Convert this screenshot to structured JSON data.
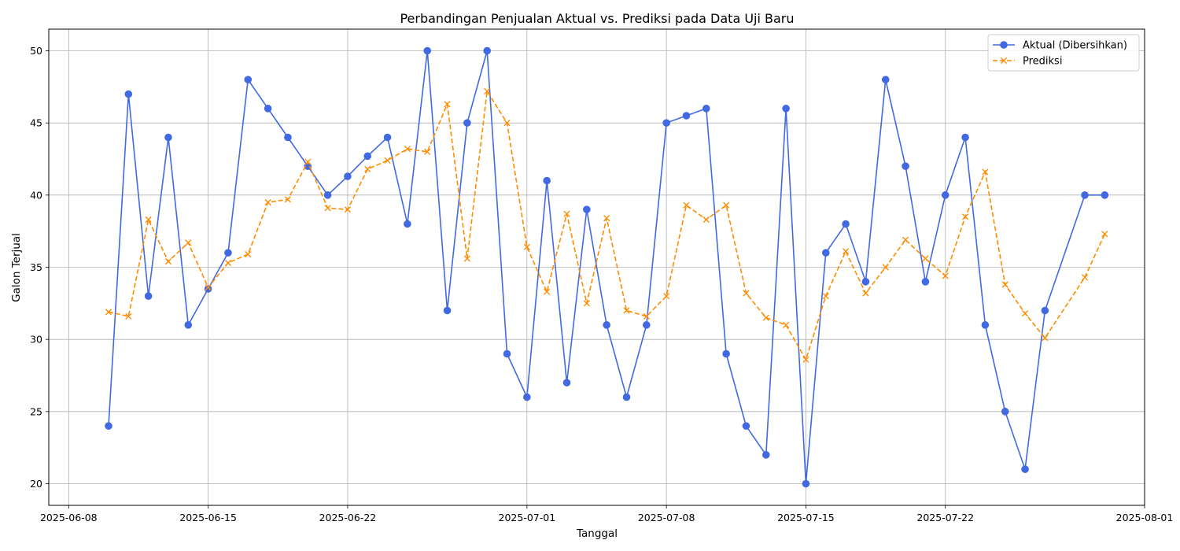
{
  "chart_data": {
    "type": "line",
    "title": "Perbandingan Penjualan Aktual vs. Prediksi pada Data Uji Baru",
    "xlabel": "Tanggal",
    "ylabel": "Galon Terjual",
    "x_ticks": [
      "2025-06-08",
      "2025-06-15",
      "2025-06-22",
      "2025-07-01",
      "2025-07-08",
      "2025-07-15",
      "2025-07-22",
      "2025-08-01"
    ],
    "y_ticks": [
      20,
      25,
      30,
      35,
      40,
      45,
      50
    ],
    "xlim": [
      "2025-06-07",
      "2025-08-01"
    ],
    "ylim": [
      18.5,
      51.5
    ],
    "grid": true,
    "legend": "top-right",
    "series": [
      {
        "name": "Aktual (Dibersihkan)",
        "color": "#4169e1",
        "style": "solid",
        "marker": "circle",
        "points": [
          [
            "2025-06-10",
            24
          ],
          [
            "2025-06-11",
            47
          ],
          [
            "2025-06-12",
            33
          ],
          [
            "2025-06-13",
            44
          ],
          [
            "2025-06-14",
            31
          ],
          [
            "2025-06-15",
            33.5
          ],
          [
            "2025-06-16",
            36
          ],
          [
            "2025-06-17",
            48
          ],
          [
            "2025-06-18",
            46
          ],
          [
            "2025-06-19",
            44
          ],
          [
            "2025-06-20",
            42
          ],
          [
            "2025-06-21",
            40
          ],
          [
            "2025-06-22",
            41.3
          ],
          [
            "2025-06-23",
            42.7
          ],
          [
            "2025-06-24",
            44
          ],
          [
            "2025-06-25",
            38
          ],
          [
            "2025-06-26",
            50
          ],
          [
            "2025-06-27",
            32
          ],
          [
            "2025-06-28",
            45
          ],
          [
            "2025-06-29",
            50
          ],
          [
            "2025-06-30",
            29
          ],
          [
            "2025-07-01",
            26
          ],
          [
            "2025-07-02",
            41
          ],
          [
            "2025-07-03",
            27
          ],
          [
            "2025-07-04",
            39
          ],
          [
            "2025-07-05",
            31
          ],
          [
            "2025-07-06",
            26
          ],
          [
            "2025-07-07",
            31
          ],
          [
            "2025-07-08",
            45
          ],
          [
            "2025-07-09",
            45.5
          ],
          [
            "2025-07-10",
            46
          ],
          [
            "2025-07-11",
            29
          ],
          [
            "2025-07-12",
            24
          ],
          [
            "2025-07-13",
            22
          ],
          [
            "2025-07-14",
            46
          ],
          [
            "2025-07-15",
            20
          ],
          [
            "2025-07-16",
            36
          ],
          [
            "2025-07-17",
            38
          ],
          [
            "2025-07-18",
            34
          ],
          [
            "2025-07-19",
            48
          ],
          [
            "2025-07-20",
            42
          ],
          [
            "2025-07-21",
            34
          ],
          [
            "2025-07-22",
            40
          ],
          [
            "2025-07-23",
            44
          ],
          [
            "2025-07-24",
            31
          ],
          [
            "2025-07-25",
            25
          ],
          [
            "2025-07-26",
            21
          ],
          [
            "2025-07-27",
            32
          ],
          [
            "2025-07-29",
            40
          ],
          [
            "2025-07-30",
            40
          ]
        ]
      },
      {
        "name": "Prediksi",
        "color": "#ff8c00",
        "style": "dashed",
        "marker": "x",
        "points": [
          [
            "2025-06-10",
            31.9
          ],
          [
            "2025-06-11",
            31.6
          ],
          [
            "2025-06-12",
            38.3
          ],
          [
            "2025-06-13",
            35.4
          ],
          [
            "2025-06-14",
            36.7
          ],
          [
            "2025-06-15",
            33.6
          ],
          [
            "2025-06-16",
            35.3
          ],
          [
            "2025-06-17",
            35.9
          ],
          [
            "2025-06-18",
            39.5
          ],
          [
            "2025-06-19",
            39.7
          ],
          [
            "2025-06-20",
            42.3
          ],
          [
            "2025-06-21",
            39.1
          ],
          [
            "2025-06-22",
            39.0
          ],
          [
            "2025-06-23",
            41.8
          ],
          [
            "2025-06-24",
            42.4
          ],
          [
            "2025-06-25",
            43.2
          ],
          [
            "2025-06-26",
            43.0
          ],
          [
            "2025-06-27",
            46.3
          ],
          [
            "2025-06-28",
            35.6
          ],
          [
            "2025-06-29",
            47.2
          ],
          [
            "2025-06-30",
            45.0
          ],
          [
            "2025-07-01",
            36.4
          ],
          [
            "2025-07-02",
            33.3
          ],
          [
            "2025-07-03",
            38.7
          ],
          [
            "2025-07-04",
            32.5
          ],
          [
            "2025-07-05",
            38.4
          ],
          [
            "2025-07-06",
            32.0
          ],
          [
            "2025-07-07",
            31.6
          ],
          [
            "2025-07-08",
            33.0
          ],
          [
            "2025-07-09",
            39.3
          ],
          [
            "2025-07-10",
            38.3
          ],
          [
            "2025-07-11",
            39.3
          ],
          [
            "2025-07-12",
            33.2
          ],
          [
            "2025-07-13",
            31.5
          ],
          [
            "2025-07-14",
            31.0
          ],
          [
            "2025-07-15",
            28.6
          ],
          [
            "2025-07-16",
            33.0
          ],
          [
            "2025-07-17",
            36.1
          ],
          [
            "2025-07-18",
            33.2
          ],
          [
            "2025-07-19",
            35.0
          ],
          [
            "2025-07-20",
            36.9
          ],
          [
            "2025-07-21",
            35.6
          ],
          [
            "2025-07-22",
            34.4
          ],
          [
            "2025-07-23",
            38.5
          ],
          [
            "2025-07-24",
            41.6
          ],
          [
            "2025-07-25",
            33.8
          ],
          [
            "2025-07-26",
            31.8
          ],
          [
            "2025-07-27",
            30.1
          ],
          [
            "2025-07-29",
            34.3
          ],
          [
            "2025-07-30",
            37.3
          ]
        ]
      }
    ]
  }
}
